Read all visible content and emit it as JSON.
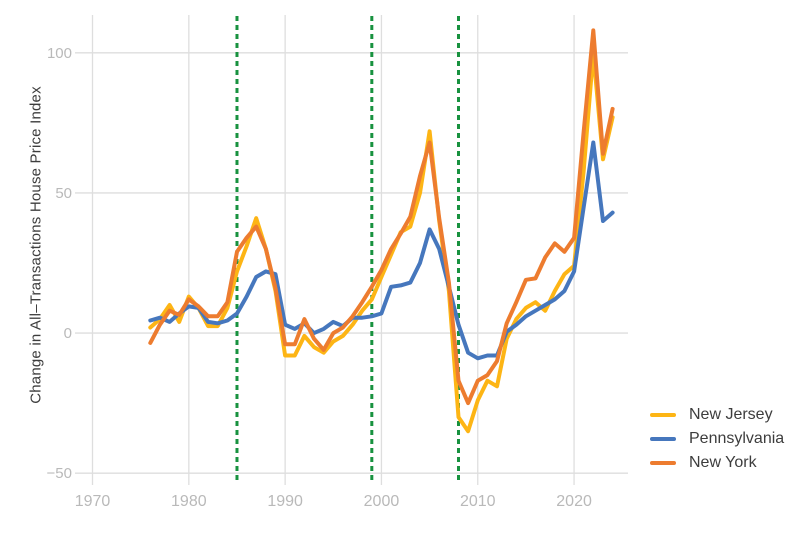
{
  "chart_data": {
    "type": "line",
    "ylabel": "Change in All–Transactions House Price Index",
    "grid": true,
    "legend_position": "bottom-right",
    "xlim": [
      1968.7,
      2025.6
    ],
    "ylim": [
      -53.5,
      113.5
    ],
    "xticks": [
      1970,
      1980,
      1990,
      2000,
      2010,
      2020
    ],
    "yticks": [
      -50,
      0,
      50,
      100
    ],
    "ytick_labels": [
      "−50",
      "0",
      "50",
      "100"
    ],
    "vline_years": [
      1985,
      1999,
      2008
    ],
    "x": [
      1976,
      1977,
      1978,
      1979,
      1980,
      1981,
      1982,
      1983,
      1984,
      1985,
      1986,
      1987,
      1988,
      1989,
      1990,
      1991,
      1992,
      1993,
      1994,
      1995,
      1996,
      1997,
      1998,
      1999,
      2000,
      2001,
      2002,
      2003,
      2004,
      2005,
      2006,
      2007,
      2008,
      2009,
      2010,
      2011,
      2012,
      2013,
      2014,
      2015,
      2016,
      2017,
      2018,
      2019,
      2020,
      2021,
      2022,
      2023,
      2024
    ],
    "series": [
      {
        "name": "New Jersey",
        "color": "#FDB515",
        "values": [
          2,
          5,
          10,
          4,
          13,
          9,
          2.5,
          2.5,
          9,
          22,
          31,
          41,
          30,
          15,
          -8,
          -8,
          -1,
          -5,
          -7,
          -3,
          -1,
          3,
          8,
          12,
          20,
          28,
          36,
          38,
          50,
          72,
          40,
          15,
          -30,
          -35,
          -24,
          -17,
          -19,
          -2,
          5,
          9,
          11,
          8,
          15,
          21,
          24,
          58,
          100,
          62,
          77
        ]
      },
      {
        "name": "Pennsylvania",
        "color": "#4677BD",
        "values": [
          4.5,
          5.5,
          4,
          7,
          9.5,
          9,
          4,
          3.5,
          4.5,
          7,
          13,
          20,
          22,
          21,
          3,
          1.5,
          3.5,
          0,
          1.5,
          4,
          2.5,
          5.5,
          5.5,
          6,
          7,
          16.5,
          17,
          18,
          25,
          37,
          30,
          16.5,
          3,
          -7,
          -9,
          -8,
          -8,
          0.5,
          3,
          6,
          8,
          10,
          12,
          15,
          22,
          45,
          68,
          40,
          43
        ]
      },
      {
        "name": "New York",
        "color": "#ED7C2F",
        "values": [
          -3.5,
          3,
          8,
          6.5,
          12,
          9.5,
          6,
          6,
          11,
          29,
          34,
          38,
          30,
          16,
          -4,
          -4,
          5,
          -2,
          -6,
          0,
          2,
          6,
          11,
          16.5,
          22.5,
          30,
          35.5,
          41.5,
          56,
          68,
          41,
          18,
          -17,
          -25,
          -17,
          -15,
          -10,
          3.5,
          11,
          19,
          19.5,
          27,
          32,
          29,
          34,
          72,
          108,
          64,
          80
        ]
      }
    ],
    "colors": {
      "gridline": "#dedede",
      "tick_label": "#b9b9b9",
      "axis_label": "#3d3d3d",
      "vline": "#18923F",
      "background": "#ffffff"
    }
  }
}
